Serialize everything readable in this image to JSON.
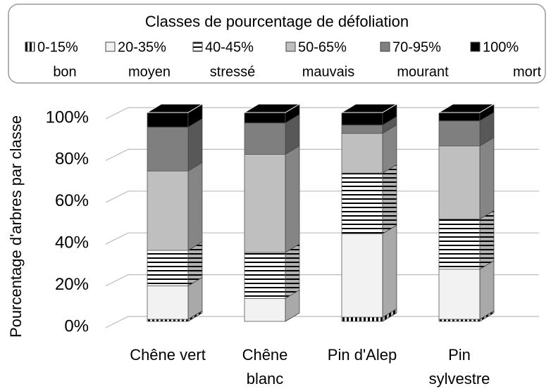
{
  "chart_data": {
    "type": "stacked-bar-3d",
    "legend_title": "Classes de pourcentage de défoliation",
    "y_label": "Pourcentage d'arbres par classe",
    "categories": [
      "Chêne vert",
      "Chêne blanc",
      "Pin d'Alep",
      "Pin sylvestre"
    ],
    "series": [
      {
        "name": "0-15%",
        "label": "bon",
        "color": "#ffffff",
        "pattern": "vertical-stripes",
        "values": [
          1,
          0,
          2,
          1
        ]
      },
      {
        "name": "20-35%",
        "label": "moyen",
        "color": "#f2f2f2",
        "values": [
          16,
          11,
          40,
          24
        ]
      },
      {
        "name": "40-45%",
        "label": "stressé",
        "color": "#ffffff",
        "pattern": "horizontal-stripes",
        "values": [
          17,
          22,
          29,
          24
        ]
      },
      {
        "name": "50-65%",
        "label": "mauvais",
        "color": "#bfbfbf",
        "values": [
          38,
          47,
          19,
          35
        ]
      },
      {
        "name": "70-95%",
        "label": "mourant",
        "color": "#7f7f7f",
        "values": [
          21,
          15,
          4,
          12
        ]
      },
      {
        "name": "100%",
        "label": "mort",
        "color": "#000000",
        "values": [
          7,
          5,
          6,
          4
        ]
      }
    ],
    "ylim": [
      0,
      100
    ],
    "yticks": [
      {
        "value": 0,
        "label": "0%"
      },
      {
        "value": 20,
        "label": "20%"
      },
      {
        "value": 40,
        "label": "40%"
      },
      {
        "value": 60,
        "label": "60%"
      },
      {
        "value": 80,
        "label": "80%"
      },
      {
        "value": 100,
        "label": "100%"
      }
    ],
    "grid": true
  }
}
